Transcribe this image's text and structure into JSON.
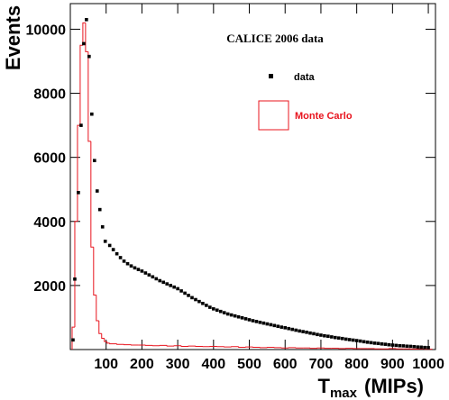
{
  "chart_data": {
    "type": "scatter",
    "title": "CALICE 2006 data",
    "ylabel": "Events",
    "xlabel_parts": [
      "T",
      "max",
      "(MIPs)"
    ],
    "xlim": [
      0,
      1020
    ],
    "ylim": [
      0,
      10800
    ],
    "xticks": [
      100,
      200,
      300,
      400,
      500,
      600,
      700,
      800,
      900,
      1000
    ],
    "yticks": [
      2000,
      4000,
      6000,
      8000,
      10000
    ],
    "series": [
      {
        "name": "data",
        "type": "scatter",
        "color": "#000000",
        "x": [
          7.5,
          12.5,
          22.5,
          30,
          37.5,
          45,
          52.5,
          60,
          67.5,
          75,
          82.5,
          90,
          97.5,
          110,
          120,
          130,
          140,
          150,
          160,
          170,
          180,
          190,
          200,
          210,
          220,
          230,
          240,
          250,
          260,
          270,
          280,
          290,
          300,
          310,
          320,
          330,
          340,
          350,
          360,
          370,
          380,
          390,
          400,
          410,
          420,
          430,
          440,
          450,
          460,
          470,
          480,
          490,
          500,
          510,
          520,
          530,
          540,
          550,
          560,
          570,
          580,
          590,
          600,
          610,
          620,
          630,
          640,
          650,
          660,
          670,
          680,
          690,
          700,
          710,
          720,
          730,
          740,
          750,
          760,
          770,
          780,
          790,
          800,
          810,
          820,
          830,
          840,
          850,
          860,
          870,
          880,
          890,
          900,
          910,
          920,
          930,
          940,
          950,
          960,
          970,
          980,
          990,
          1000
        ],
        "values": [
          300,
          2200,
          4900,
          7000,
          9550,
          10300,
          9150,
          7350,
          5900,
          4950,
          4370,
          3830,
          3380,
          3250,
          3120,
          2990,
          2870,
          2760,
          2680,
          2610,
          2550,
          2500,
          2450,
          2390,
          2330,
          2270,
          2210,
          2150,
          2100,
          2050,
          2000,
          1950,
          1900,
          1830,
          1760,
          1690,
          1620,
          1560,
          1500,
          1440,
          1380,
          1320,
          1270,
          1230,
          1190,
          1150,
          1110,
          1080,
          1050,
          1020,
          990,
          960,
          930,
          900,
          875,
          850,
          825,
          800,
          775,
          750,
          725,
          700,
          680,
          655,
          630,
          605,
          580,
          560,
          540,
          515,
          495,
          470,
          450,
          430,
          415,
          395,
          375,
          360,
          345,
          325,
          310,
          295,
          280,
          265,
          245,
          230,
          215,
          200,
          190,
          175,
          165,
          150,
          140,
          130,
          120,
          115,
          105,
          100,
          90,
          80,
          75,
          65,
          60
        ]
      },
      {
        "name": "Monte Carlo",
        "type": "histogram",
        "color": "#e8141e",
        "bins": [
          5,
          12.5,
          20,
          27.5,
          35,
          42.5,
          50,
          57.5,
          65,
          72.5,
          80,
          87.5,
          95,
          102.5,
          110,
          130,
          150,
          170,
          190,
          210,
          230,
          250,
          270,
          290,
          310,
          330,
          350,
          370,
          390,
          410,
          430,
          450,
          470,
          490,
          510,
          530,
          550,
          570,
          590,
          610,
          630,
          650,
          670,
          690,
          710,
          730,
          750,
          770,
          790,
          810,
          830,
          850,
          870,
          890,
          910,
          930,
          950,
          970,
          990,
          1010
        ],
        "values": [
          700,
          4000,
          7000,
          9500,
          10200,
          9300,
          6500,
          3200,
          1700,
          900,
          500,
          350,
          250,
          200,
          180,
          160,
          150,
          140,
          140,
          130,
          120,
          130,
          110,
          120,
          100,
          110,
          100,
          90,
          100,
          90,
          80,
          90,
          70,
          80,
          70,
          60,
          70,
          60,
          50,
          60,
          50,
          50,
          40,
          50,
          40,
          40,
          30,
          40,
          30,
          30,
          30,
          20,
          20,
          30,
          20,
          20,
          15,
          20,
          10
        ]
      }
    ]
  }
}
